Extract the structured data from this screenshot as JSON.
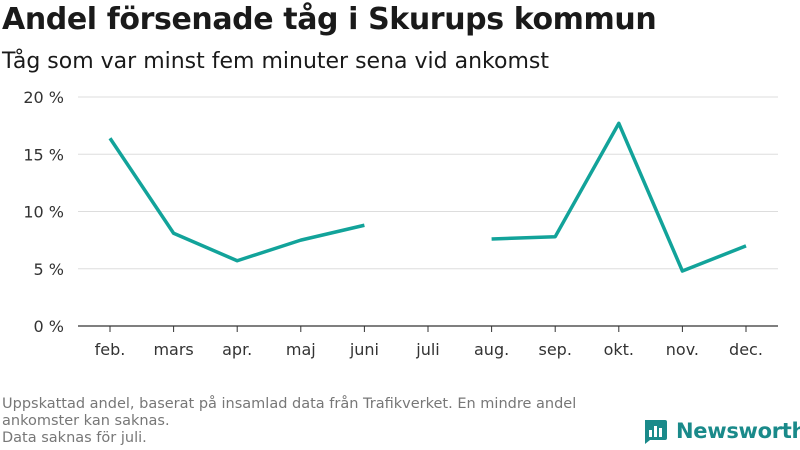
{
  "header": {
    "title": "Andel försenade tåg i Skurups kommun",
    "subtitle": "Tåg som var minst fem minuter sena vid ankomst"
  },
  "chart_data": {
    "type": "line",
    "categories": [
      "feb.",
      "mars",
      "apr.",
      "maj",
      "juni",
      "juli",
      "aug.",
      "sep.",
      "okt.",
      "nov.",
      "dec."
    ],
    "series": [
      {
        "values": [
          16.4,
          8.1,
          5.7,
          7.5,
          8.8,
          null,
          7.6,
          7.8,
          17.7,
          4.8,
          7.0
        ],
        "color": "#12a39a"
      }
    ],
    "y_ticks": [
      "0 %",
      "5 %",
      "10 %",
      "15 %",
      "20 %"
    ],
    "ylim": [
      0,
      20
    ],
    "grid": true,
    "xlabel": "",
    "ylabel": ""
  },
  "footer": {
    "note_lines": [
      "Uppskattad andel, baserat på insamlad data från Trafikverket. En mindre andel ankomster kan saknas.",
      "Data saknas för juli."
    ],
    "brand": "Newsworthy",
    "brand_color": "#1a8a8a"
  }
}
